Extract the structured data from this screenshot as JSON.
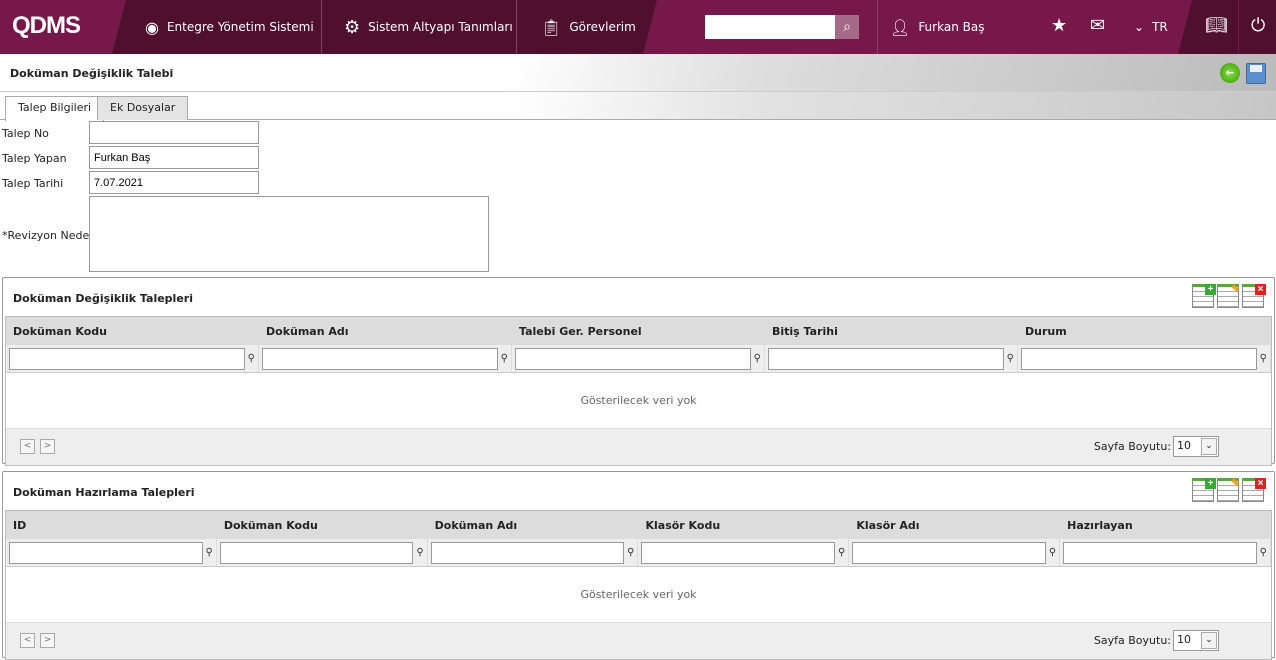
{
  "header": {
    "logo": "QDMS",
    "nav": [
      {
        "label": "Entegre Yönetim Sistemi",
        "icon": "q-circle-icon"
      },
      {
        "label": "Sistem Altyapı Tanımları",
        "icon": "gear-icon"
      },
      {
        "label": "Görevlerim",
        "icon": "clipboard-icon"
      }
    ],
    "search_placeholder": "",
    "user": "Furkan Baş",
    "language": "TR"
  },
  "page": {
    "title": "Doküman Değişiklik Talebi"
  },
  "tabs": [
    {
      "label": "Talep Bilgileri",
      "active": true
    },
    {
      "label": "Ek Dosyalar",
      "active": false
    }
  ],
  "form": {
    "talep_no_label": "Talep No",
    "talep_no": "",
    "talep_yapan_label": "Talep Yapan",
    "talep_yapan": "Furkan Baş",
    "talep_tarihi_label": "Talep Tarihi",
    "talep_tarihi": "7.07.2021",
    "revizyon_label": "*Revizyon Nedeni",
    "revizyon": ""
  },
  "grids": [
    {
      "title": "Doküman Değişiklik Talepleri",
      "columns": [
        "Doküman Kodu",
        "Doküman Adı",
        "Talebi Ger. Personel",
        "Bitiş Tarihi",
        "Durum"
      ],
      "empty": "Gösterilecek veri yok",
      "page_size_label": "Sayfa Boyutu:",
      "page_size": "10"
    },
    {
      "title": "Doküman Hazırlama Talepleri",
      "columns": [
        "ID",
        "Doküman Kodu",
        "Doküman Adı",
        "Klasör Kodu",
        "Klasör Adı",
        "Hazırlayan"
      ],
      "empty": "Gösterilecek veri yok",
      "page_size_label": "Sayfa Boyutu:",
      "page_size": "10"
    }
  ],
  "colors": {
    "header": "#76184a",
    "header_dark": "#4f1030"
  }
}
